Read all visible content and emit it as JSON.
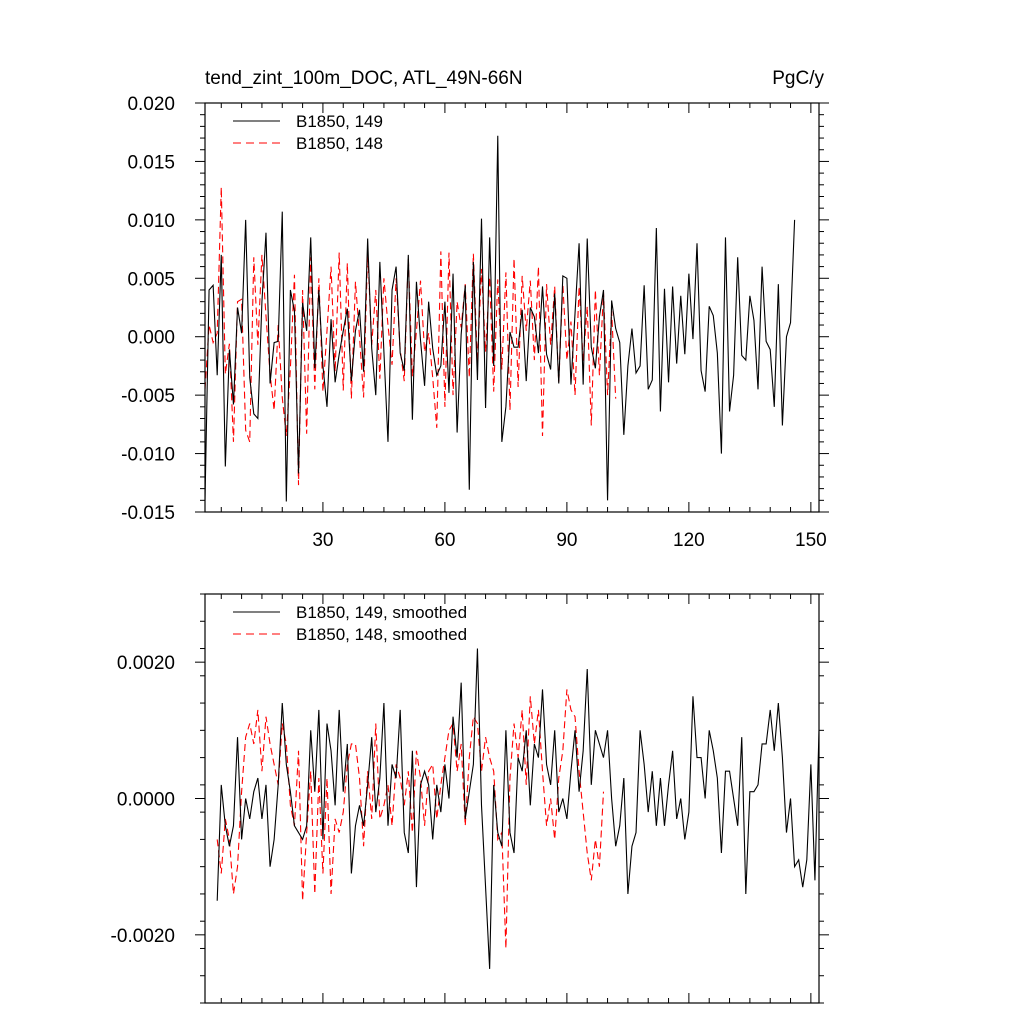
{
  "chart_data": [
    {
      "type": "line",
      "title": "tend_zint_100m_DOC, ATL_49N-66N",
      "units": "PgC/y",
      "xlim": [
        1,
        152
      ],
      "ylim": [
        -0.015,
        0.02
      ],
      "xticks": [
        30,
        60,
        90,
        120,
        150
      ],
      "xtick_labels": [
        "30",
        "60",
        "90",
        "120",
        "150"
      ],
      "yticks": [
        -0.015,
        -0.01,
        -0.005,
        0.0,
        0.005,
        0.01,
        0.015,
        0.02
      ],
      "ytick_labels": [
        "-0.015",
        "-0.010",
        "-0.005",
        "0.000",
        "0.005",
        "0.010",
        "0.015",
        "0.020"
      ],
      "legend_position": "top-left",
      "series": [
        {
          "name": "B1850, 149",
          "color": "#000000",
          "dash": "solid",
          "x_start": 1,
          "values": [
            -0.014,
            0.004,
            0.0044,
            -0.0033,
            0.007,
            -0.0111,
            -0.0011,
            -0.0058,
            0.0025,
            0.0003,
            0.01,
            -0.0035,
            -0.0066,
            -0.007,
            0.003,
            0.0089,
            -0.004,
            -0.0005,
            -0.0004,
            0.0107,
            -0.0141,
            0.004,
            0.0022,
            -0.0117,
            0.0029,
            0.0005,
            0.0085,
            -0.0027,
            0.004,
            -0.0025,
            -0.006,
            0.0015,
            -0.0039,
            -0.0015,
            0.0005,
            0.0024,
            -0.0038,
            0.0005,
            0.0023,
            -0.003,
            0.0084,
            -0.001,
            -0.005,
            0.0064,
            -0.0013,
            -0.009,
            0.004,
            0.006,
            -0.0014,
            -0.0029,
            0.007,
            -0.0071,
            0.0047,
            -0.0003,
            -0.0042,
            0.003,
            -0.001,
            -0.0033,
            -0.0025,
            0.003,
            -0.0048,
            0.0054,
            -0.0082,
            0.0002,
            0.0044,
            -0.0131,
            0.0064,
            -0.0037,
            0.0101,
            -0.0061,
            0.0085,
            -0.0025,
            0.0172,
            -0.009,
            -0.006,
            0.0004,
            -0.0009,
            -0.0009,
            0.0023,
            -0.0038,
            0.0025,
            0.0017,
            -0.0014,
            0.0043,
            -0.0015,
            -0.0028,
            0.0037,
            -0.004,
            0.0052,
            0.005,
            -0.0041,
            0.002,
            0.008,
            -0.0041,
            0.0084,
            -0.0009,
            -0.0027,
            0.0017,
            0.004,
            -0.014,
            0.0031,
            0.0007,
            -0.0005,
            -0.0084,
            -0.0025,
            0.0007,
            -0.0031,
            -0.0025,
            0.0044,
            -0.0045,
            -0.0037,
            0.0093,
            -0.0064,
            0.0041,
            -0.0039,
            0.0043,
            -0.0023,
            0.0035,
            -0.0015,
            0.0054,
            -0.0002,
            0.008,
            -0.0029,
            -0.0047,
            0.0026,
            0.0018,
            -0.0014,
            -0.01,
            0.0085,
            -0.0064,
            -0.0033,
            0.0068,
            -0.0016,
            -0.002,
            0.0035,
            0.0014,
            -0.0045,
            0.006,
            -0.0004,
            -0.0011,
            -0.006,
            0.0045,
            -0.0076,
            0.0,
            0.0012,
            0.01
          ]
        },
        {
          "name": "B1850, 148",
          "color": "#ff0000",
          "dash": "dashed",
          "x_start": 1,
          "values": [
            -0.0045,
            0.001,
            -0.0005,
            0.0003,
            0.0128,
            -0.0032,
            -0.0006,
            -0.009,
            0.003,
            0.0032,
            -0.008,
            -0.009,
            0.0068,
            -0.0007,
            0.007,
            0.0018,
            -0.0032,
            -0.0063,
            0.001,
            -0.0052,
            -0.0085,
            -0.0027,
            0.0053,
            -0.0127,
            0.004,
            -0.0083,
            0.0068,
            -0.0045,
            0.005,
            -0.0047,
            0.0005,
            0.006,
            -0.003,
            0.0072,
            -0.0046,
            0.0063,
            -0.0053,
            0.0047,
            0.0,
            -0.0052,
            0.0074,
            -0.0007,
            0.004,
            -0.0036,
            0.005,
            0.001,
            -0.0024,
            0.005,
            -0.0011,
            -0.0038,
            0.0068,
            -0.0034,
            0.0005,
            0.0048,
            -0.0013,
            0.0003,
            -0.0035,
            -0.0078,
            0.0073,
            -0.006,
            0.0072,
            -0.005,
            0.003,
            0.0008,
            0.0045,
            -0.0035,
            0.0071,
            -0.0022,
            0.0058,
            -0.0013,
            0.0051,
            -0.0047,
            0.0049,
            -0.0028,
            0.0055,
            -0.0063,
            0.0067,
            -0.0043,
            0.0052,
            0.0005,
            0.0048,
            -0.002,
            0.006,
            -0.0085,
            0.0045,
            -0.0007,
            0.0043,
            -0.004,
            0.0045,
            -0.002,
            0.0013,
            -0.005,
            0.0043,
            -0.0021,
            0.0026,
            -0.0076,
            0.004,
            -0.0033,
            0.0038,
            -0.005,
            0.0022,
            -0.0053
          ]
        }
      ]
    },
    {
      "type": "line",
      "title": "",
      "xlim": [
        1,
        152
      ],
      "ylim": [
        -0.003,
        0.003
      ],
      "xticks": [
        30,
        60,
        90,
        120,
        150
      ],
      "yticks": [
        -0.002,
        0.0,
        0.002
      ],
      "ytick_labels": [
        "-0.0020",
        "0.0000",
        "0.0020"
      ],
      "legend_position": "top-left",
      "series": [
        {
          "name": "B1850, 149, smoothed",
          "color": "#000000",
          "dash": "solid",
          "x_start": 4,
          "values": [
            -0.0015,
            0.0002,
            -0.0004,
            -0.0007,
            -0.0004,
            0.0009,
            -0.0006,
            0.0,
            -0.0003,
            0.0001,
            0.0003,
            -0.0003,
            0.0002,
            -0.001,
            -0.0006,
            0.0002,
            0.0014,
            0.0005,
            0.0001,
            -0.0004,
            -0.0005,
            -0.0006,
            -0.0004,
            0.001,
            0.0001,
            0.0013,
            -0.0006,
            0.0011,
            0.0007,
            -0.0001,
            0.0013,
            0.0001,
            0.0008,
            -0.0011,
            -0.0004,
            -0.0001,
            -0.0004,
            0.0002,
            0.0009,
            -0.0002,
            0.0003,
            0.0014,
            -0.0004,
            0.0005,
            0.0003,
            0.0013,
            -0.0005,
            -0.0008,
            0.0007,
            -0.0013,
            0.0002,
            0.0004,
            0.0002,
            -0.0006,
            0.0002,
            -0.0002,
            0.0005,
            0.0,
            0.0012,
            0.0006,
            0.0017,
            -0.0003,
            0.0001,
            0.0005,
            0.0022,
            -0.0001,
            -0.0013,
            -0.0025,
            0.0002,
            -0.0005,
            -0.0007,
            0.001,
            -0.0005,
            -0.0008,
            0.0006,
            0.0004,
            0.001,
            -0.0001,
            0.0008,
            0.0006,
            0.0016,
            0.0005,
            0.0002,
            0.001,
            -0.0002,
            0.0,
            -0.0003,
            0.0004,
            0.001,
            0.0001,
            0.0007,
            0.0019,
            0.0002,
            0.001,
            0.0008,
            0.0006,
            0.001,
            0.0,
            -0.0007,
            -0.0004,
            0.0003,
            -0.0014,
            -0.0007,
            -0.0005,
            0.001,
            0.0005,
            -0.0002,
            0.0004,
            -0.0004,
            0.0003,
            -0.0004,
            0.0002,
            0.0007,
            -0.0003,
            0.0,
            -0.0006,
            -0.0002,
            0.0015,
            0.0006,
            0.0006,
            0.0,
            0.001,
            0.0007,
            0.0003,
            -0.0008,
            0.0004,
            0.0004,
            0.0,
            -0.0004,
            0.0009,
            -0.0014,
            0.0001,
            0.0001,
            0.0002,
            0.0008,
            0.0008,
            0.0013,
            0.0007,
            0.0014,
            0.0006,
            -0.0005,
            0.0,
            -0.001,
            -0.0009,
            -0.0013,
            -0.0009,
            0.0005,
            -0.0012,
            0.001,
            0.0003,
            0.0013
          ]
        },
        {
          "name": "B1850, 148, smoothed",
          "color": "#ff0000",
          "dash": "dashed",
          "x_start": 4,
          "values": [
            -0.0006,
            -0.0011,
            -0.0003,
            -0.0006,
            -0.0014,
            -0.001,
            0.0001,
            0.0009,
            0.0011,
            0.0008,
            0.0013,
            0.0004,
            0.0012,
            0.0008,
            0.0005,
            0.0002,
            0.0011,
            0.0008,
            -0.0001,
            -0.0004,
            0.0007,
            -0.0015,
            -0.0005,
            0.0004,
            -0.0014,
            0.0003,
            -0.0011,
            0.0003,
            -0.0014,
            -0.0003,
            -0.0005,
            -0.0002,
            0.0005,
            0.0008,
            0.0008,
            0.0003,
            -0.0007,
            0.0004,
            -0.0003,
            0.0011,
            -0.0003,
            -0.0001,
            0.0002,
            -0.0004,
            0.0005,
            0.0003,
            -0.0001,
            0.0004,
            -0.0005,
            0.0007,
            0.0003,
            -0.0004,
            0.0004,
            0.0005,
            -0.0003,
            0.0002,
            0.0006,
            0.001,
            0.0011,
            0.0004,
            0.0008,
            -0.0004,
            0.0006,
            0.0012,
            0.0011,
            0.0004,
            0.0009,
            0.0006,
            0.0004,
            -0.0006,
            -0.0005,
            -0.0022,
            0.0003,
            0.0011,
            0.0006,
            0.0013,
            0.0002,
            0.0015,
            0.0008,
            0.0013,
            0.0004,
            -0.0004,
            0.0,
            -0.0006,
            0.0003,
            0.0007,
            0.0016,
            0.0013,
            0.0012,
            0.0004,
            -0.0002,
            -0.0008,
            -0.0012,
            -0.0006,
            -0.001,
            0.0001
          ]
        }
      ]
    }
  ]
}
